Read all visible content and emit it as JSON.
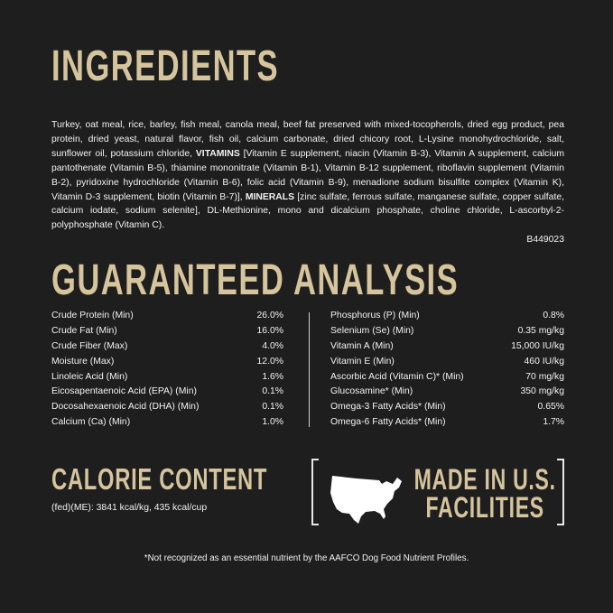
{
  "ingredients": {
    "title": "INGREDIENTS",
    "text_1": "Turkey, oat meal, rice, barley, fish meal, canola meal, beef fat preserved with mixed-tocopherols, dried egg product, pea protein, dried yeast, natural flavor, fish oil, calcium carbonate, dried chicory root, L-Lysine monohydrochloride, salt, sunflower oil, potassium chloride, ",
    "vitamins_label": "VITAMINS",
    "text_2": " [Vitamin E supplement, niacin (Vitamin B-3), Vitamin A supplement, calcium pantothenate (Vitamin B-5), thiamine mononitrate (Vitamin B-1), Vitamin B-12 supplement, riboflavin supplement (Vitamin B-2), pyridoxine hydrochloride (Vitamin B-6), folic acid (Vitamin B-9), menadione sodium bisulfite complex (Vitamin K), Vitamin D-3 supplement, biotin (Vitamin B-7)], ",
    "minerals_label": "MINERALS",
    "text_3": " [zinc sulfate, ferrous sulfate, manganese sulfate, copper sulfate, calcium iodate, sodium selenite], DL-Methionine, mono and dicalcium phosphate, choline chloride, L-ascorbyl-2-polyphosphate (Vitamin C).",
    "code": "B449023"
  },
  "analysis": {
    "title": "GUARANTEED ANALYSIS",
    "left": [
      {
        "name": "Crude Protein (Min)",
        "value": "26.0%"
      },
      {
        "name": "Crude Fat (Min)",
        "value": "16.0%"
      },
      {
        "name": "Crude Fiber (Max)",
        "value": "4.0%"
      },
      {
        "name": "Moisture (Max)",
        "value": "12.0%"
      },
      {
        "name": "Linoleic Acid (Min)",
        "value": "1.6%"
      },
      {
        "name": "Eicosapentaenoic Acid (EPA) (Min)",
        "value": "0.1%"
      },
      {
        "name": "Docosahexaenoic Acid (DHA) (Min)",
        "value": "0.1%"
      },
      {
        "name": "Calcium (Ca) (Min)",
        "value": "1.0%"
      }
    ],
    "right": [
      {
        "name": "Phosphorus (P) (Min)",
        "value": "0.8%"
      },
      {
        "name": "Selenium (Se) (Min)",
        "value": "0.35 mg/kg"
      },
      {
        "name": "Vitamin A (Min)",
        "value": "15,000 IU/kg"
      },
      {
        "name": "Vitamin E (Min)",
        "value": "460 IU/kg"
      },
      {
        "name": "Ascorbic Acid (Vitamin C)* (Min)",
        "value": "70 mg/kg"
      },
      {
        "name": "Glucosamine* (Min)",
        "value": "350 mg/kg"
      },
      {
        "name": "Omega-3 Fatty Acids* (Min)",
        "value": "0.65%"
      },
      {
        "name": "Omega-6 Fatty Acids* (Min)",
        "value": "1.7%"
      }
    ]
  },
  "calorie": {
    "title": "CALORIE CONTENT",
    "text": "(fed)(ME): 3841 kcal/kg, 435 kcal/cup"
  },
  "badge": {
    "line1": "MADE IN U.S.",
    "line2": "FACILITIES",
    "icon": "usa-map-icon"
  },
  "footnote": "*Not recognized as an essential nutrient by the AAFCO Dog Food Nutrient Profiles.",
  "colors": {
    "background": "#1e1e1e",
    "heading": "#d6c59c",
    "text": "#f2f2f2"
  }
}
